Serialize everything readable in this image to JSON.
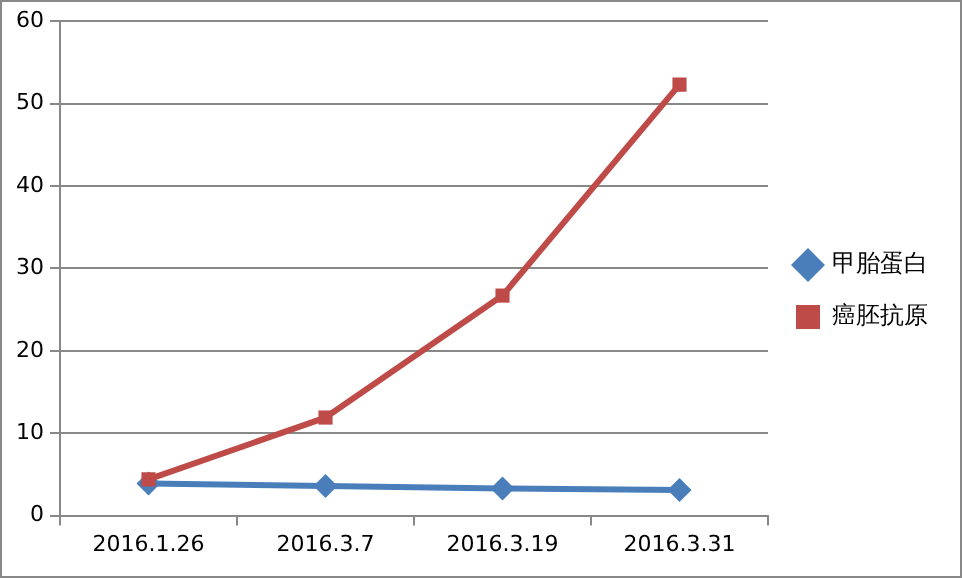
{
  "chart_data": {
    "type": "line",
    "categories": [
      "2016.1.26",
      "2016.3.7",
      "2016.3.19",
      "2016.3.31"
    ],
    "series": [
      {
        "name": "甲胎蛋白",
        "color": "#4a7ebb",
        "values": [
          3.9,
          3.6,
          3.3,
          3.1
        ],
        "marker": "diamond"
      },
      {
        "name": "癌胚抗原",
        "color": "#be4b48",
        "values": [
          4.4,
          11.9,
          26.7,
          52.3
        ],
        "marker": "square"
      }
    ],
    "ylim": [
      0,
      60
    ],
    "yticks": [
      0,
      10,
      20,
      30,
      40,
      50,
      60
    ],
    "grid": "y",
    "legend": "right",
    "line_style": "solid"
  }
}
